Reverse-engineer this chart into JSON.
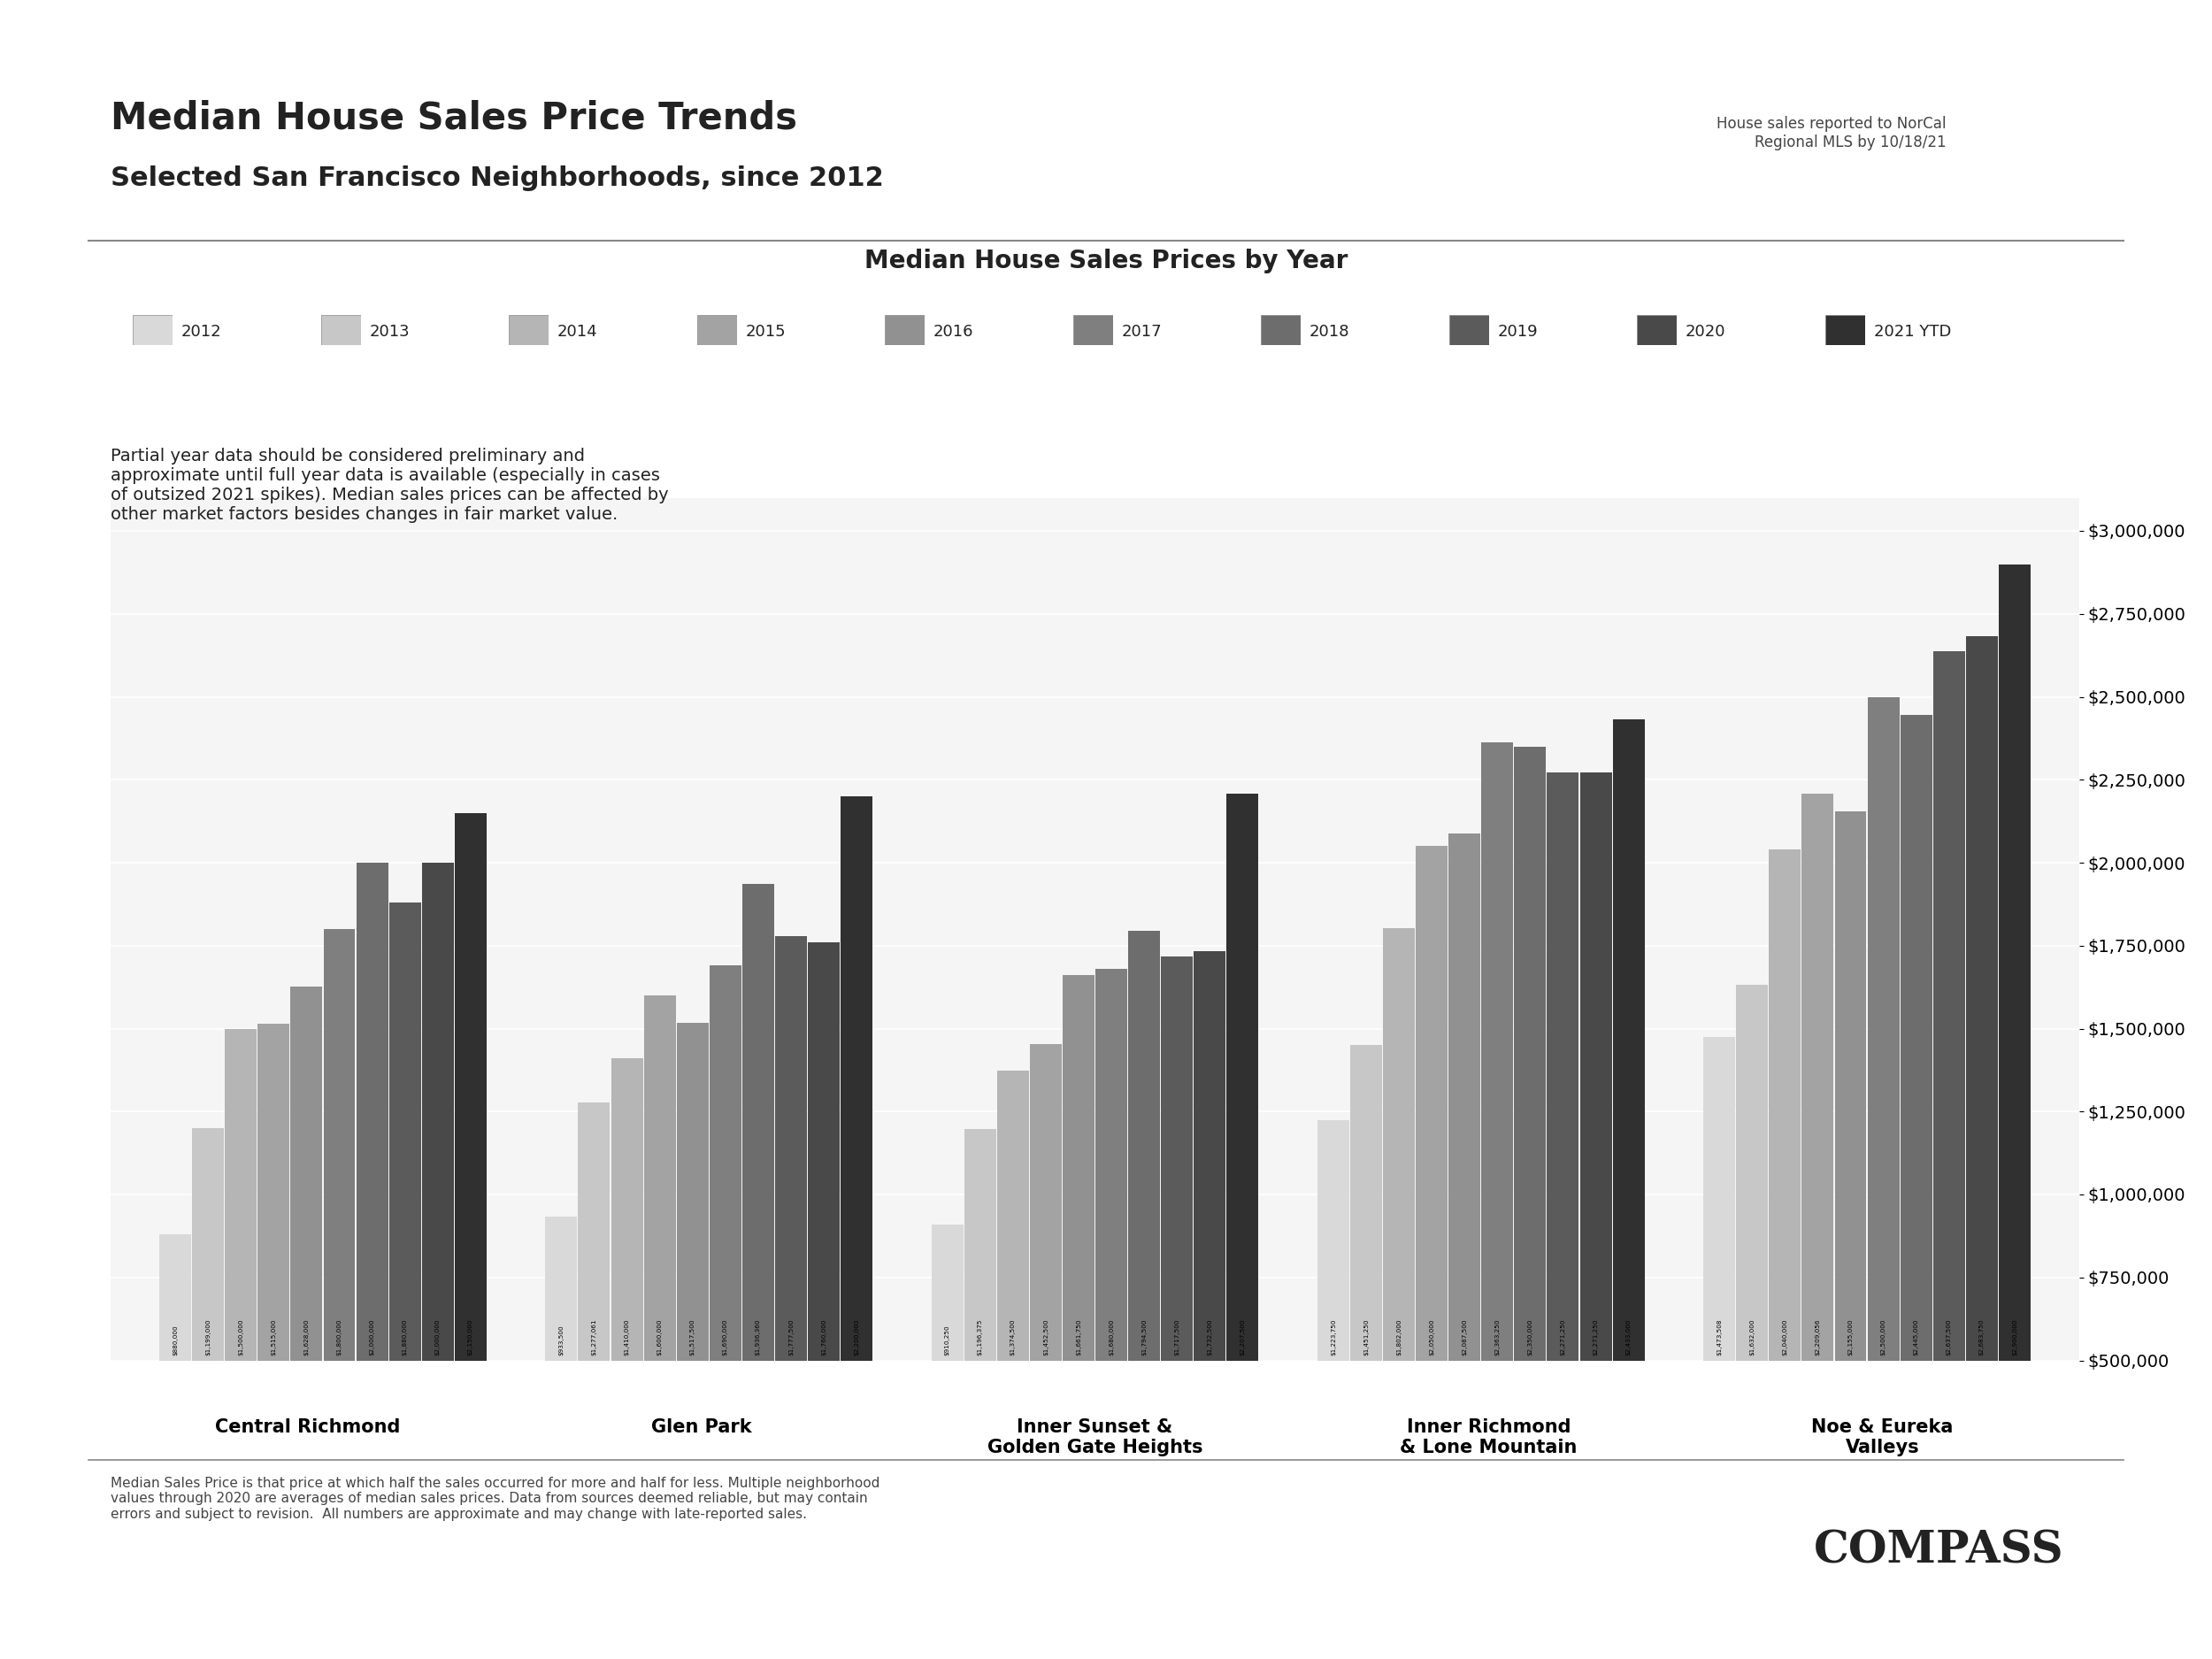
{
  "title": "Median House Sales Price Trends",
  "subtitle": "Selected San Francisco Neighborhoods, since 2012",
  "note_top_right": "House sales reported to NorCal\nRegional MLS by 10/18/21",
  "chart_title": "Median House Sales Prices by Year",
  "years": [
    "2012",
    "2013",
    "2014",
    "2015",
    "2016",
    "2017",
    "2018",
    "2019",
    "2020",
    "2021 YTD"
  ],
  "bar_colors": [
    "#d9d9d9",
    "#c7c7c7",
    "#b5b5b5",
    "#a3a3a3",
    "#919191",
    "#7f7f7f",
    "#6d6d6d",
    "#5b5b5b",
    "#494949",
    "#303030"
  ],
  "neighborhoods": [
    "Central Richmond",
    "Glen Park",
    "Inner Sunset &\nGolden Gate Heights",
    "Inner Richmond\n& Lone Mountain",
    "Noe & Eureka\nValleys"
  ],
  "data": {
    "Central Richmond": [
      880000,
      1199000,
      1500000,
      1515000,
      1628000,
      1800000,
      2000000,
      1880000,
      2000000,
      2150000
    ],
    "Glen Park": [
      933500,
      1277061,
      1410000,
      1600000,
      1517500,
      1690000,
      1936360,
      1777500,
      1760000,
      2200000
    ],
    "Inner Sunset &\nGolden Gate Heights": [
      910250,
      1196375,
      1374500,
      1452500,
      1661750,
      1680000,
      1794500,
      1717500,
      1732500,
      2207500
    ],
    "Inner Richmond\n& Lone Mountain": [
      1223750,
      1451250,
      1802000,
      2050000,
      2087500,
      2363250,
      2350000,
      2271250,
      2271250,
      2433000
    ],
    "Noe & Eureka\nValleys": [
      1473508,
      1632000,
      2040000,
      2209056,
      2155000,
      2500000,
      2445000,
      2637500,
      2683750,
      2900000
    ]
  },
  "ylim": [
    500000,
    3100000
  ],
  "yticks": [
    500000,
    750000,
    1000000,
    1250000,
    1500000,
    1750000,
    2000000,
    2250000,
    2500000,
    2750000,
    3000000
  ],
  "disclaimer": "Partial year data should be considered preliminary and\napproximate until full year data is available (especially in cases\nof outsized 2021 spikes). Median sales prices can be affected by\nother market factors besides changes in fair market value.",
  "footer": "Median Sales Price is that price at which half the sales occurred for more and half for less. Multiple neighborhood\nvalues through 2020 are averages of median sales prices. Data from sources deemed reliable, but may contain\nerrors and subject to revision.  All numbers are approximate and may change with late-reported sales.",
  "background_color": "#ffffff",
  "chart_bg_color": "#f5f5f5"
}
